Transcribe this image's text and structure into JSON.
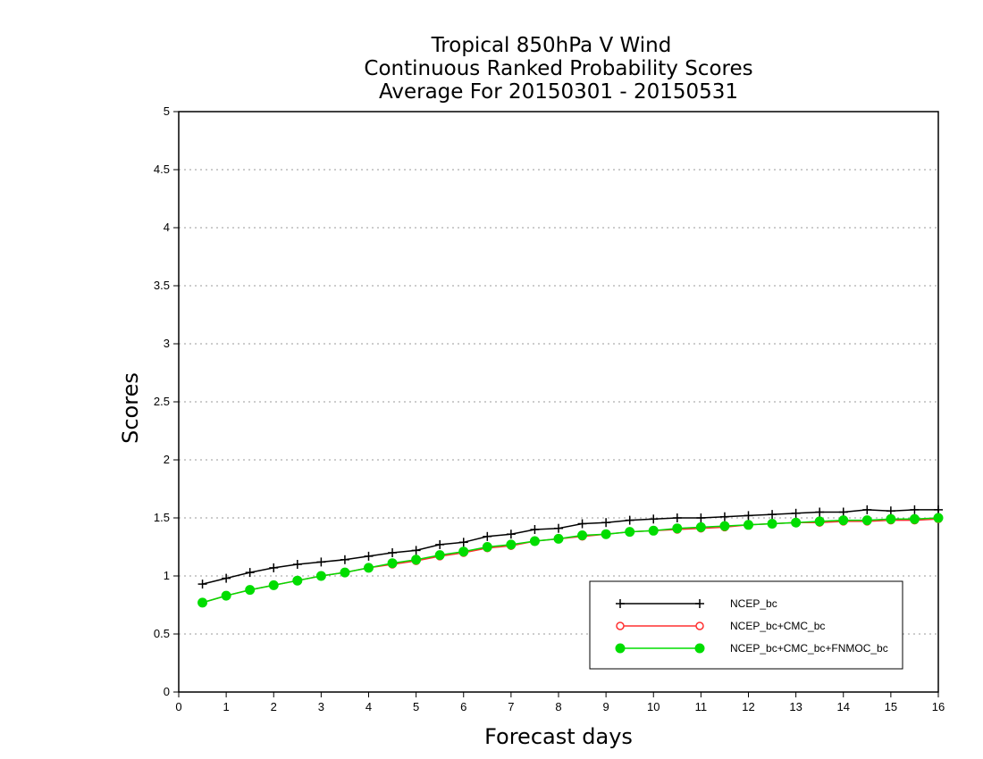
{
  "chart_data": {
    "type": "line",
    "title_lines": [
      "Tropical 850hPa V Wind",
      "Continuous Ranked Probability Scores",
      "Average For 20150301 - 20150531"
    ],
    "xlabel": "Forecast days",
    "ylabel": "Scores",
    "xlim": [
      0,
      16
    ],
    "ylim": [
      0,
      5
    ],
    "x_ticks": [
      0,
      1,
      2,
      3,
      4,
      5,
      6,
      7,
      8,
      9,
      10,
      11,
      12,
      13,
      14,
      15,
      16
    ],
    "x_tick_labels": [
      "0",
      "1",
      "2",
      "3",
      "4",
      "5",
      "6",
      "7",
      "8",
      "9",
      "10",
      "11",
      "12",
      "13",
      "14",
      "15",
      "16"
    ],
    "y_ticks": [
      0,
      0.5,
      1,
      1.5,
      2,
      2.5,
      3,
      3.5,
      4,
      4.5,
      5
    ],
    "y_tick_labels": [
      "0",
      "0.5",
      "1",
      "1.5",
      "2",
      "2.5",
      "3",
      "3.5",
      "4",
      "4.5",
      "5"
    ],
    "grid": "horizontal-dotted",
    "legend_position": "bottom-right",
    "x": [
      0.5,
      1,
      1.5,
      2,
      2.5,
      3,
      3.5,
      4,
      4.5,
      5,
      5.5,
      6,
      6.5,
      7,
      7.5,
      8,
      8.5,
      9,
      9.5,
      10,
      10.5,
      11,
      11.5,
      12,
      12.5,
      13,
      13.5,
      14,
      14.5,
      15,
      15.5,
      16
    ],
    "series": [
      {
        "name": "NCEP_bc",
        "color": "#000000",
        "marker": "plus",
        "values": [
          0.93,
          0.98,
          1.03,
          1.07,
          1.1,
          1.12,
          1.14,
          1.17,
          1.2,
          1.22,
          1.27,
          1.29,
          1.34,
          1.36,
          1.4,
          1.41,
          1.45,
          1.46,
          1.48,
          1.49,
          1.5,
          1.5,
          1.51,
          1.52,
          1.53,
          1.54,
          1.55,
          1.55,
          1.57,
          1.56,
          1.57,
          1.57
        ]
      },
      {
        "name": "NCEP_bc+CMC_bc",
        "color": "#ff3030",
        "marker": "open-circle",
        "values": [
          0.77,
          0.83,
          0.88,
          0.92,
          0.96,
          1.0,
          1.03,
          1.07,
          1.1,
          1.13,
          1.17,
          1.2,
          1.24,
          1.26,
          1.3,
          1.32,
          1.34,
          1.36,
          1.38,
          1.39,
          1.4,
          1.41,
          1.42,
          1.44,
          1.45,
          1.46,
          1.46,
          1.47,
          1.47,
          1.48,
          1.48,
          1.49
        ]
      },
      {
        "name": "NCEP_bc+CMC_bc+FNMOC_bc",
        "color": "#00dd00",
        "marker": "filled-circle",
        "values": [
          0.77,
          0.83,
          0.88,
          0.92,
          0.96,
          1.0,
          1.03,
          1.07,
          1.11,
          1.14,
          1.18,
          1.21,
          1.25,
          1.27,
          1.3,
          1.32,
          1.35,
          1.36,
          1.38,
          1.39,
          1.41,
          1.42,
          1.43,
          1.44,
          1.45,
          1.46,
          1.47,
          1.48,
          1.48,
          1.49,
          1.49,
          1.5
        ]
      }
    ]
  }
}
